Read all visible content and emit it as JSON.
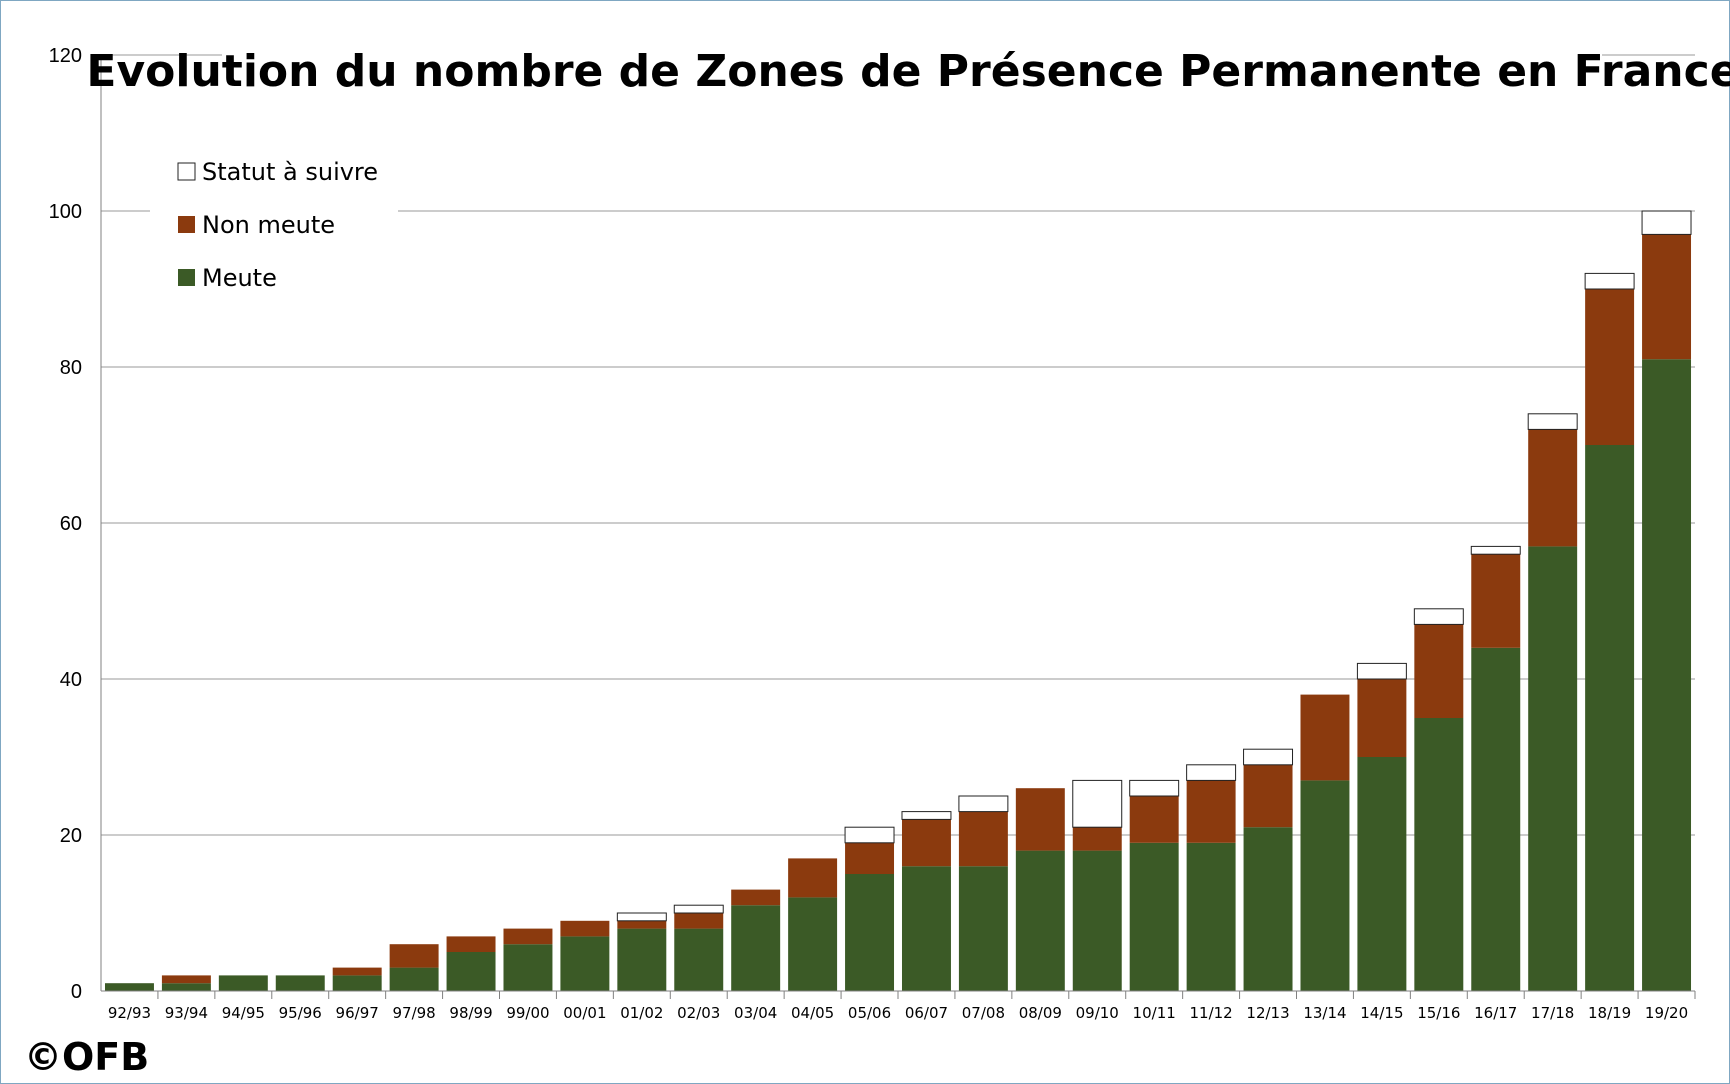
{
  "chart_data": {
    "type": "bar",
    "stacked": true,
    "title": "Evolution du nombre de Zones de Présence Permanente en France",
    "xlabel": "",
    "ylabel": "",
    "ylim": [
      0,
      120
    ],
    "yticks": [
      0,
      20,
      40,
      60,
      80,
      100,
      120
    ],
    "grid": true,
    "legend_position": "top-left",
    "categories": [
      "92/93",
      "93/94",
      "94/95",
      "95/96",
      "96/97",
      "97/98",
      "98/99",
      "99/00",
      "00/01",
      "01/02",
      "02/03",
      "03/04",
      "04/05",
      "05/06",
      "06/07",
      "07/08",
      "08/09",
      "09/10",
      "10/11",
      "11/12",
      "12/13",
      "13/14",
      "14/15",
      "15/16",
      "16/17",
      "17/18",
      "18/19",
      "19/20"
    ],
    "series": [
      {
        "name": "Meute",
        "color": "#3b5a26",
        "values": [
          1,
          1,
          2,
          2,
          2,
          3,
          5,
          6,
          7,
          8,
          8,
          11,
          12,
          15,
          16,
          16,
          18,
          18,
          19,
          19,
          21,
          27,
          30,
          35,
          44,
          57,
          70,
          81
        ]
      },
      {
        "name": "Non meute",
        "color": "#8b3a0e",
        "values": [
          0,
          1,
          0,
          0,
          1,
          3,
          2,
          2,
          2,
          1,
          2,
          2,
          5,
          4,
          6,
          7,
          8,
          3,
          6,
          8,
          8,
          11,
          10,
          12,
          12,
          15,
          20,
          16
        ]
      },
      {
        "name": "Statut à suivre",
        "color": "#ffffff",
        "values": [
          0,
          0,
          0,
          0,
          0,
          0,
          0,
          0,
          0,
          1,
          1,
          0,
          0,
          2,
          1,
          2,
          0,
          6,
          2,
          2,
          2,
          0,
          2,
          2,
          1,
          2,
          2,
          3
        ]
      }
    ],
    "legend_order": [
      "Statut à suivre",
      "Non meute",
      "Meute"
    ]
  },
  "watermark": "©OFB"
}
